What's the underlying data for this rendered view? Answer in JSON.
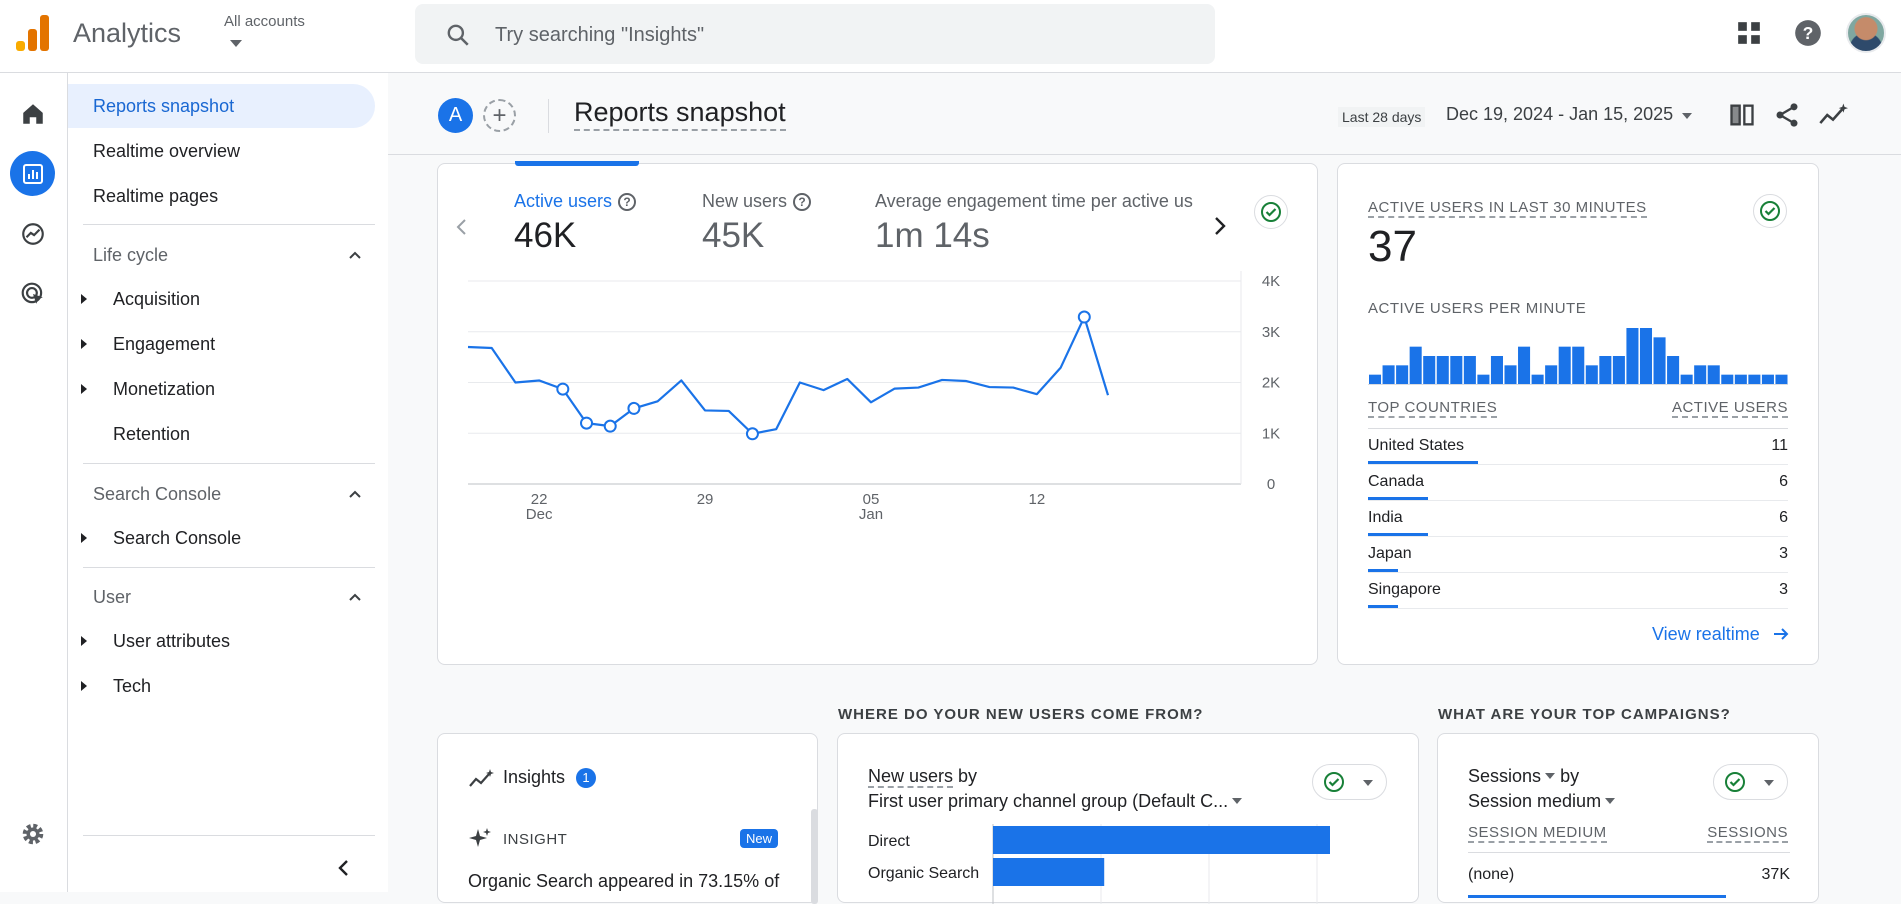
{
  "app": {
    "name": "Analytics",
    "account_label": "All accounts"
  },
  "search": {
    "placeholder": "Try searching \"Insights\""
  },
  "nav": {
    "items": [
      {
        "label": "Reports snapshot"
      },
      {
        "label": "Realtime overview"
      },
      {
        "label": "Realtime pages"
      }
    ],
    "sections": [
      {
        "label": "Life cycle",
        "children": [
          "Acquisition",
          "Engagement",
          "Monetization",
          "Retention"
        ]
      },
      {
        "label": "Search Console",
        "children": [
          "Search Console"
        ]
      },
      {
        "label": "User",
        "children": [
          "User attributes",
          "Tech"
        ]
      }
    ]
  },
  "header": {
    "comparison_badge": "A",
    "title": "Reports snapshot",
    "date_pill": "Last 28 days",
    "date_range": "Dec 19, 2024 - Jan 15, 2025"
  },
  "metrics": [
    {
      "label": "Active users",
      "value": "46K"
    },
    {
      "label": "New users",
      "value": "45K"
    },
    {
      "label": "Average engagement time per active us",
      "value": "1m 14s"
    }
  ],
  "chart_data": {
    "type": "line",
    "series": [
      {
        "name": "Active users",
        "values": [
          2700,
          2680,
          2000,
          2040,
          1870,
          1200,
          1140,
          1490,
          1630,
          2040,
          1450,
          1440,
          990,
          1080,
          2000,
          1850,
          2070,
          1610,
          1880,
          1900,
          2050,
          2030,
          1910,
          1900,
          1770,
          2290,
          3290,
          1750
        ]
      }
    ],
    "x": [
      "Dec 19",
      "Dec 20",
      "Dec 21",
      "Dec 22",
      "Dec 23",
      "Dec 24",
      "Dec 25",
      "Dec 26",
      "Dec 27",
      "Dec 28",
      "Dec 29",
      "Dec 30",
      "Dec 31",
      "Jan 1",
      "Jan 2",
      "Jan 3",
      "Jan 4",
      "Jan 5",
      "Jan 6",
      "Jan 7",
      "Jan 8",
      "Jan 9",
      "Jan 10",
      "Jan 11",
      "Jan 12",
      "Jan 13",
      "Jan 14",
      "Jan 15"
    ],
    "markers": [
      4,
      5,
      6,
      7,
      12,
      26
    ],
    "x_ticks": [
      {
        "index": 3,
        "label": "22",
        "sub": "Dec"
      },
      {
        "index": 10,
        "label": "29",
        "sub": ""
      },
      {
        "index": 17,
        "label": "05",
        "sub": "Jan"
      },
      {
        "index": 24,
        "label": "12",
        "sub": ""
      }
    ],
    "y_ticks": [
      "4K",
      "3K",
      "2K",
      "1K",
      "0"
    ],
    "ylim": [
      0,
      4000
    ],
    "color": "#1a73e8"
  },
  "realtime": {
    "title": "ACTIVE USERS IN LAST 30 MINUTES",
    "value": "37",
    "per_minute_label": "ACTIVE USERS PER MINUTE",
    "per_minute": [
      1,
      2,
      2,
      4,
      3,
      3,
      3,
      3,
      1,
      3,
      2,
      4,
      1,
      2,
      4,
      4,
      2,
      3,
      3,
      6,
      6,
      5,
      3,
      1,
      2,
      2,
      1,
      1,
      1,
      1,
      1
    ],
    "countries_header": "TOP COUNTRIES",
    "users_header": "ACTIVE USERS",
    "countries": [
      {
        "name": "United States",
        "value": "11",
        "share": 0.2619
      },
      {
        "name": "Canada",
        "value": "6",
        "share": 0.1429
      },
      {
        "name": "India",
        "value": "6",
        "share": 0.1429
      },
      {
        "name": "Japan",
        "value": "3",
        "share": 0.0714
      },
      {
        "name": "Singapore",
        "value": "3",
        "share": 0.0714
      }
    ],
    "view_link": "View realtime"
  },
  "insights": {
    "title": "Insights",
    "count": "1",
    "insight_label": "INSIGHT",
    "new_badge": "New",
    "text": "Organic Search appeared in 73.15% of"
  },
  "new_users": {
    "section_title": "WHERE DO YOUR NEW USERS COME FROM?",
    "metric": "New users",
    "by": "by",
    "dimension": "First user primary channel group (Default C...",
    "rows": [
      {
        "label": "Direct",
        "share": 1.0
      },
      {
        "label": "Organic Search",
        "share": 0.33
      }
    ]
  },
  "campaigns": {
    "section_title": "WHAT ARE YOUR TOP CAMPAIGNS?",
    "metric": "Sessions",
    "by": "by",
    "dimension": "Session medium",
    "col1": "SESSION MEDIUM",
    "col2": "SESSIONS",
    "rows": [
      {
        "label": "(none)",
        "value": "37K",
        "share": 0.8
      }
    ]
  }
}
